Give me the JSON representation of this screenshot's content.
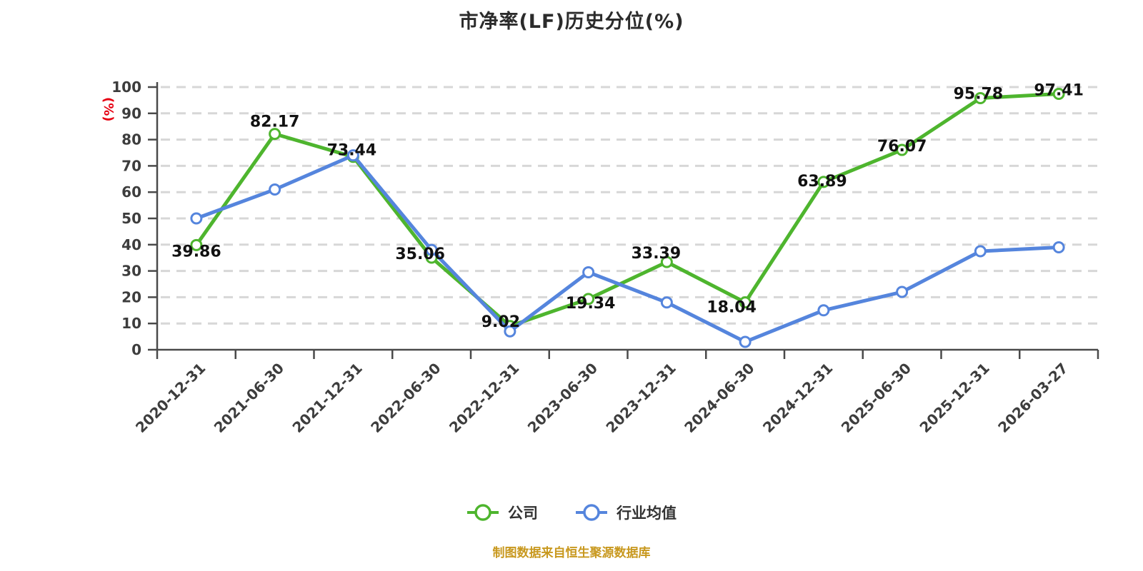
{
  "title": "市净率(LF)历史分位(%)",
  "footer": "制图数据来自恒生聚源数据库",
  "y_axis": {
    "unit_label": "(%)",
    "min": 0,
    "max": 100,
    "tick_step": 10,
    "tick_labels": [
      "0",
      "10",
      "20",
      "30",
      "40",
      "50",
      "60",
      "70",
      "80",
      "90",
      "100"
    ]
  },
  "legend": {
    "items": [
      {
        "label": "公司",
        "color": "#4eb52e"
      },
      {
        "label": "行业均值",
        "color": "#5585dd"
      }
    ]
  },
  "colors": {
    "company_green": "#4eb52e",
    "industry_blue": "#5585dd",
    "grid": "#d7d7d7",
    "axis": "#4a4a4a",
    "tick_text": "#3d3d3d",
    "data_label_text": "#111111",
    "title_text": "#2b2b2b",
    "unit_red": "#e60012",
    "footer_orange": "#c8981e"
  },
  "chart_data": {
    "type": "line",
    "title": "市净率(LF)历史分位(%)",
    "xlabel": "",
    "ylabel": "(%)",
    "ylim": [
      0,
      100
    ],
    "grid": "horizontal dashed",
    "legend_position": "bottom",
    "categories": [
      "2020-12-31",
      "2021-06-30",
      "2021-12-31",
      "2022-06-30",
      "2022-12-31",
      "2023-06-30",
      "2023-12-31",
      "2024-06-30",
      "2024-12-31",
      "2025-06-30",
      "2025-12-31",
      "2026-03-27"
    ],
    "series": [
      {
        "name": "公司",
        "color": "#4eb52e",
        "labels_shown": true,
        "values": [
          39.86,
          82.17,
          73.44,
          35.06,
          9.02,
          19.34,
          33.39,
          18.04,
          63.89,
          76.07,
          95.78,
          97.41
        ]
      },
      {
        "name": "行业均值",
        "color": "#5585dd",
        "labels_shown": false,
        "values_estimated_from_pixels": true,
        "values": [
          50,
          61,
          74,
          38,
          7,
          29.5,
          18,
          3,
          15,
          22,
          37.5,
          39
        ]
      }
    ]
  }
}
